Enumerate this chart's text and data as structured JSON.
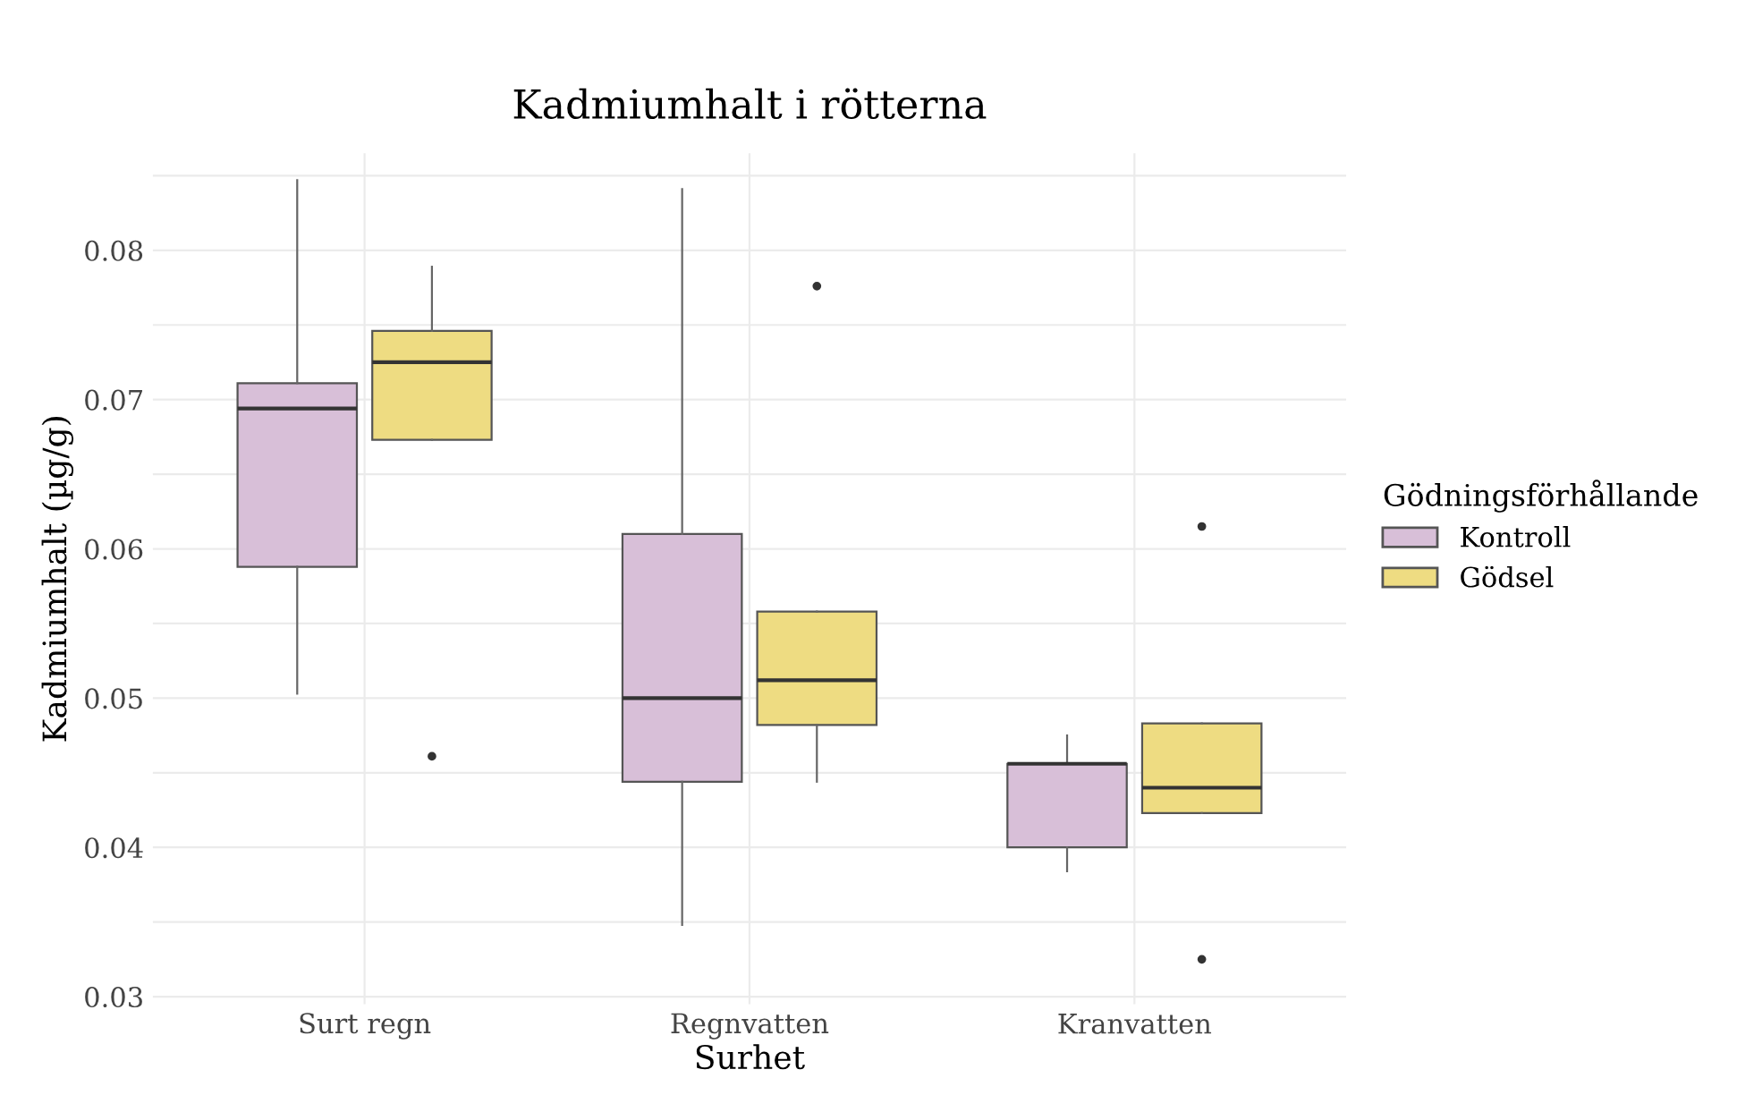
{
  "chart_data": {
    "type": "box",
    "title": "Kadmiumhalt i rötterna",
    "xlabel": "Surhet",
    "ylabel": "Kadmiumhalt (µg/g)",
    "legend_title": "Gödningsförhållande",
    "categories": [
      "Surt regn",
      "Regnvatten",
      "Kranvatten"
    ],
    "series": [
      {
        "name": "Kontroll",
        "color": "#d8bfd8",
        "boxes": [
          {
            "low": 0.0503,
            "q1": 0.0588,
            "median": 0.0694,
            "q3": 0.0711,
            "high": 0.0847
          },
          {
            "low": 0.0348,
            "q1": 0.0444,
            "median": 0.05,
            "q3": 0.061,
            "high": 0.0841
          },
          {
            "low": 0.0384,
            "q1": 0.04,
            "median": 0.0456,
            "q3": 0.0456,
            "high": 0.0475
          }
        ]
      },
      {
        "name": "Gödsel",
        "color": "#eedc82",
        "boxes": [
          {
            "low": 0.0673,
            "q1": 0.0673,
            "median": 0.0725,
            "q3": 0.0746,
            "high": 0.0789,
            "outliers": [
              0.0461
            ]
          },
          {
            "low": 0.0444,
            "q1": 0.0482,
            "median": 0.0512,
            "q3": 0.0558,
            "high": 0.0558,
            "outliers": [
              0.0776
            ]
          },
          {
            "low": 0.0423,
            "q1": 0.0423,
            "median": 0.044,
            "q3": 0.0483,
            "high": 0.0483,
            "outliers": [
              0.0615,
              0.0325
            ]
          }
        ]
      }
    ],
    "ylim": [
      0.0295,
      0.0865
    ],
    "yticks": [
      0.03,
      {
        "value": 0.035,
        "label": null
      },
      0.04,
      {
        "value": 0.045,
        "label": null
      },
      0.05,
      {
        "value": 0.055,
        "label": null
      },
      0.06,
      {
        "value": 0.065,
        "label": null
      },
      0.07,
      {
        "value": 0.075,
        "label": null
      },
      0.08,
      {
        "value": 0.085,
        "label": null
      }
    ],
    "grid": true,
    "legend": "right"
  }
}
